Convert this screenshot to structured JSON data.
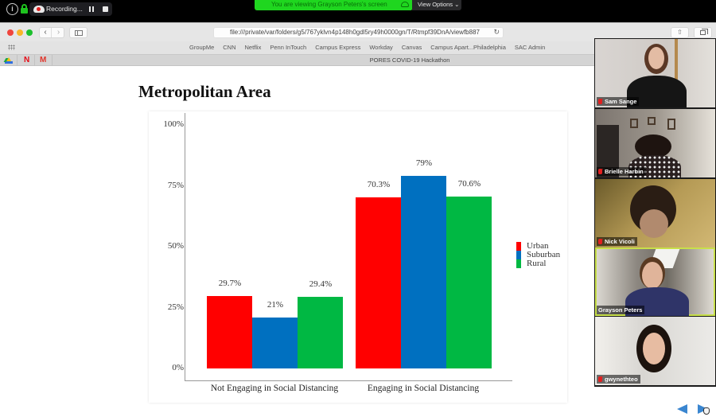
{
  "zoom_bar": {
    "recording_label": "Recording...",
    "share_banner": "You are viewing Grayson Peters's screen",
    "view_options": "View Options ⌄"
  },
  "browser": {
    "url": "file:///private/var/folders/g5/767yklvn4p148h0gdl5ry49h0000gn/T/Rtmpf39DnA/viewfb887",
    "bookmarks": [
      "GroupMe",
      "CNN",
      "Netflix",
      "Penn InTouch",
      "Campus Express",
      "Workday",
      "Canvas",
      "Campus Apart...Philadelphia",
      "SAC Admin"
    ],
    "tab_title": "PORES COVID-19 Hackathon",
    "back_icon": "‹",
    "forward_icon": "›",
    "reload_icon": "↻",
    "share_icon": "⇧"
  },
  "page": {
    "title": "Metropolitan Area"
  },
  "chart_data": {
    "type": "bar",
    "title": "Metropolitan Area",
    "xlabel": "",
    "ylabel": "",
    "ylim": [
      0,
      100
    ],
    "yticks": [
      "0%",
      "25%",
      "50%",
      "75%",
      "100%"
    ],
    "categories": [
      "Not Engaging in Social Distancing",
      "Engaging in Social Distancing"
    ],
    "series": [
      {
        "name": "Urban",
        "color": "#ff0000",
        "values": [
          29.7,
          70.3
        ],
        "labels": [
          "29.7%",
          "70.3%"
        ]
      },
      {
        "name": "Suburban",
        "color": "#0070c0",
        "values": [
          21,
          79
        ],
        "labels": [
          "21%",
          "79%"
        ]
      },
      {
        "name": "Rural",
        "color": "#00b843",
        "values": [
          29.4,
          70.6
        ],
        "labels": [
          "29.4%",
          "70.6%"
        ]
      }
    ],
    "legend_position": "right",
    "grid": false
  },
  "participants": [
    {
      "name": "Sam Sange",
      "muted": true,
      "active": false
    },
    {
      "name": "Brielle Harbin",
      "muted": true,
      "active": false
    },
    {
      "name": "Nick Vicoli",
      "muted": true,
      "active": false
    },
    {
      "name": "Grayson Peters",
      "muted": false,
      "active": true
    },
    {
      "name": "gwynethteo",
      "muted": true,
      "active": false
    }
  ]
}
